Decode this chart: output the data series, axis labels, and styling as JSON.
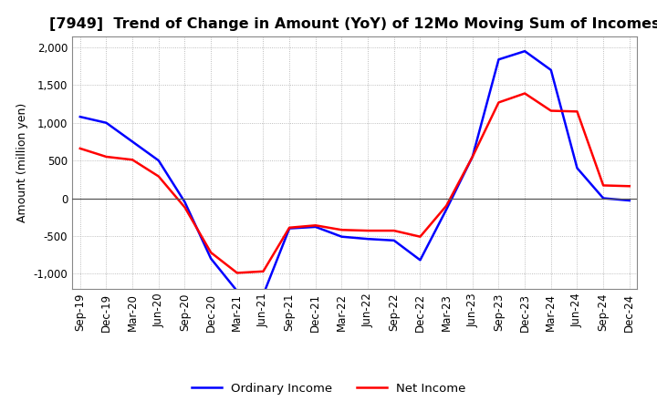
{
  "title": "[7949]  Trend of Change in Amount (YoY) of 12Mo Moving Sum of Incomes",
  "ylabel": "Amount (million yen)",
  "ylim": [
    -1200,
    2150
  ],
  "yticks": [
    -1000,
    -500,
    0,
    500,
    1000,
    1500,
    2000
  ],
  "x_labels": [
    "Sep-19",
    "Dec-19",
    "Mar-20",
    "Jun-20",
    "Sep-20",
    "Dec-20",
    "Mar-21",
    "Jun-21",
    "Sep-21",
    "Dec-21",
    "Mar-22",
    "Jun-22",
    "Sep-22",
    "Dec-22",
    "Mar-23",
    "Jun-23",
    "Sep-23",
    "Dec-23",
    "Mar-24",
    "Jun-24",
    "Sep-24",
    "Dec-24"
  ],
  "ordinary_income": [
    1080,
    1000,
    750,
    500,
    -50,
    -800,
    -1230,
    -1280,
    -400,
    -380,
    -510,
    -540,
    -560,
    -820,
    -150,
    550,
    1840,
    1950,
    1700,
    400,
    0,
    -30
  ],
  "net_income": [
    660,
    550,
    510,
    290,
    -120,
    -720,
    -990,
    -970,
    -390,
    -360,
    -420,
    -430,
    -430,
    -510,
    -100,
    550,
    1270,
    1390,
    1160,
    1150,
    170,
    160
  ],
  "ordinary_color": "#0000ff",
  "net_color": "#ff0000",
  "background_color": "#ffffff",
  "grid_color": "#aaaaaa",
  "title_fontsize": 11.5,
  "axis_fontsize": 9,
  "legend_fontsize": 9.5,
  "tick_fontsize": 8.5
}
